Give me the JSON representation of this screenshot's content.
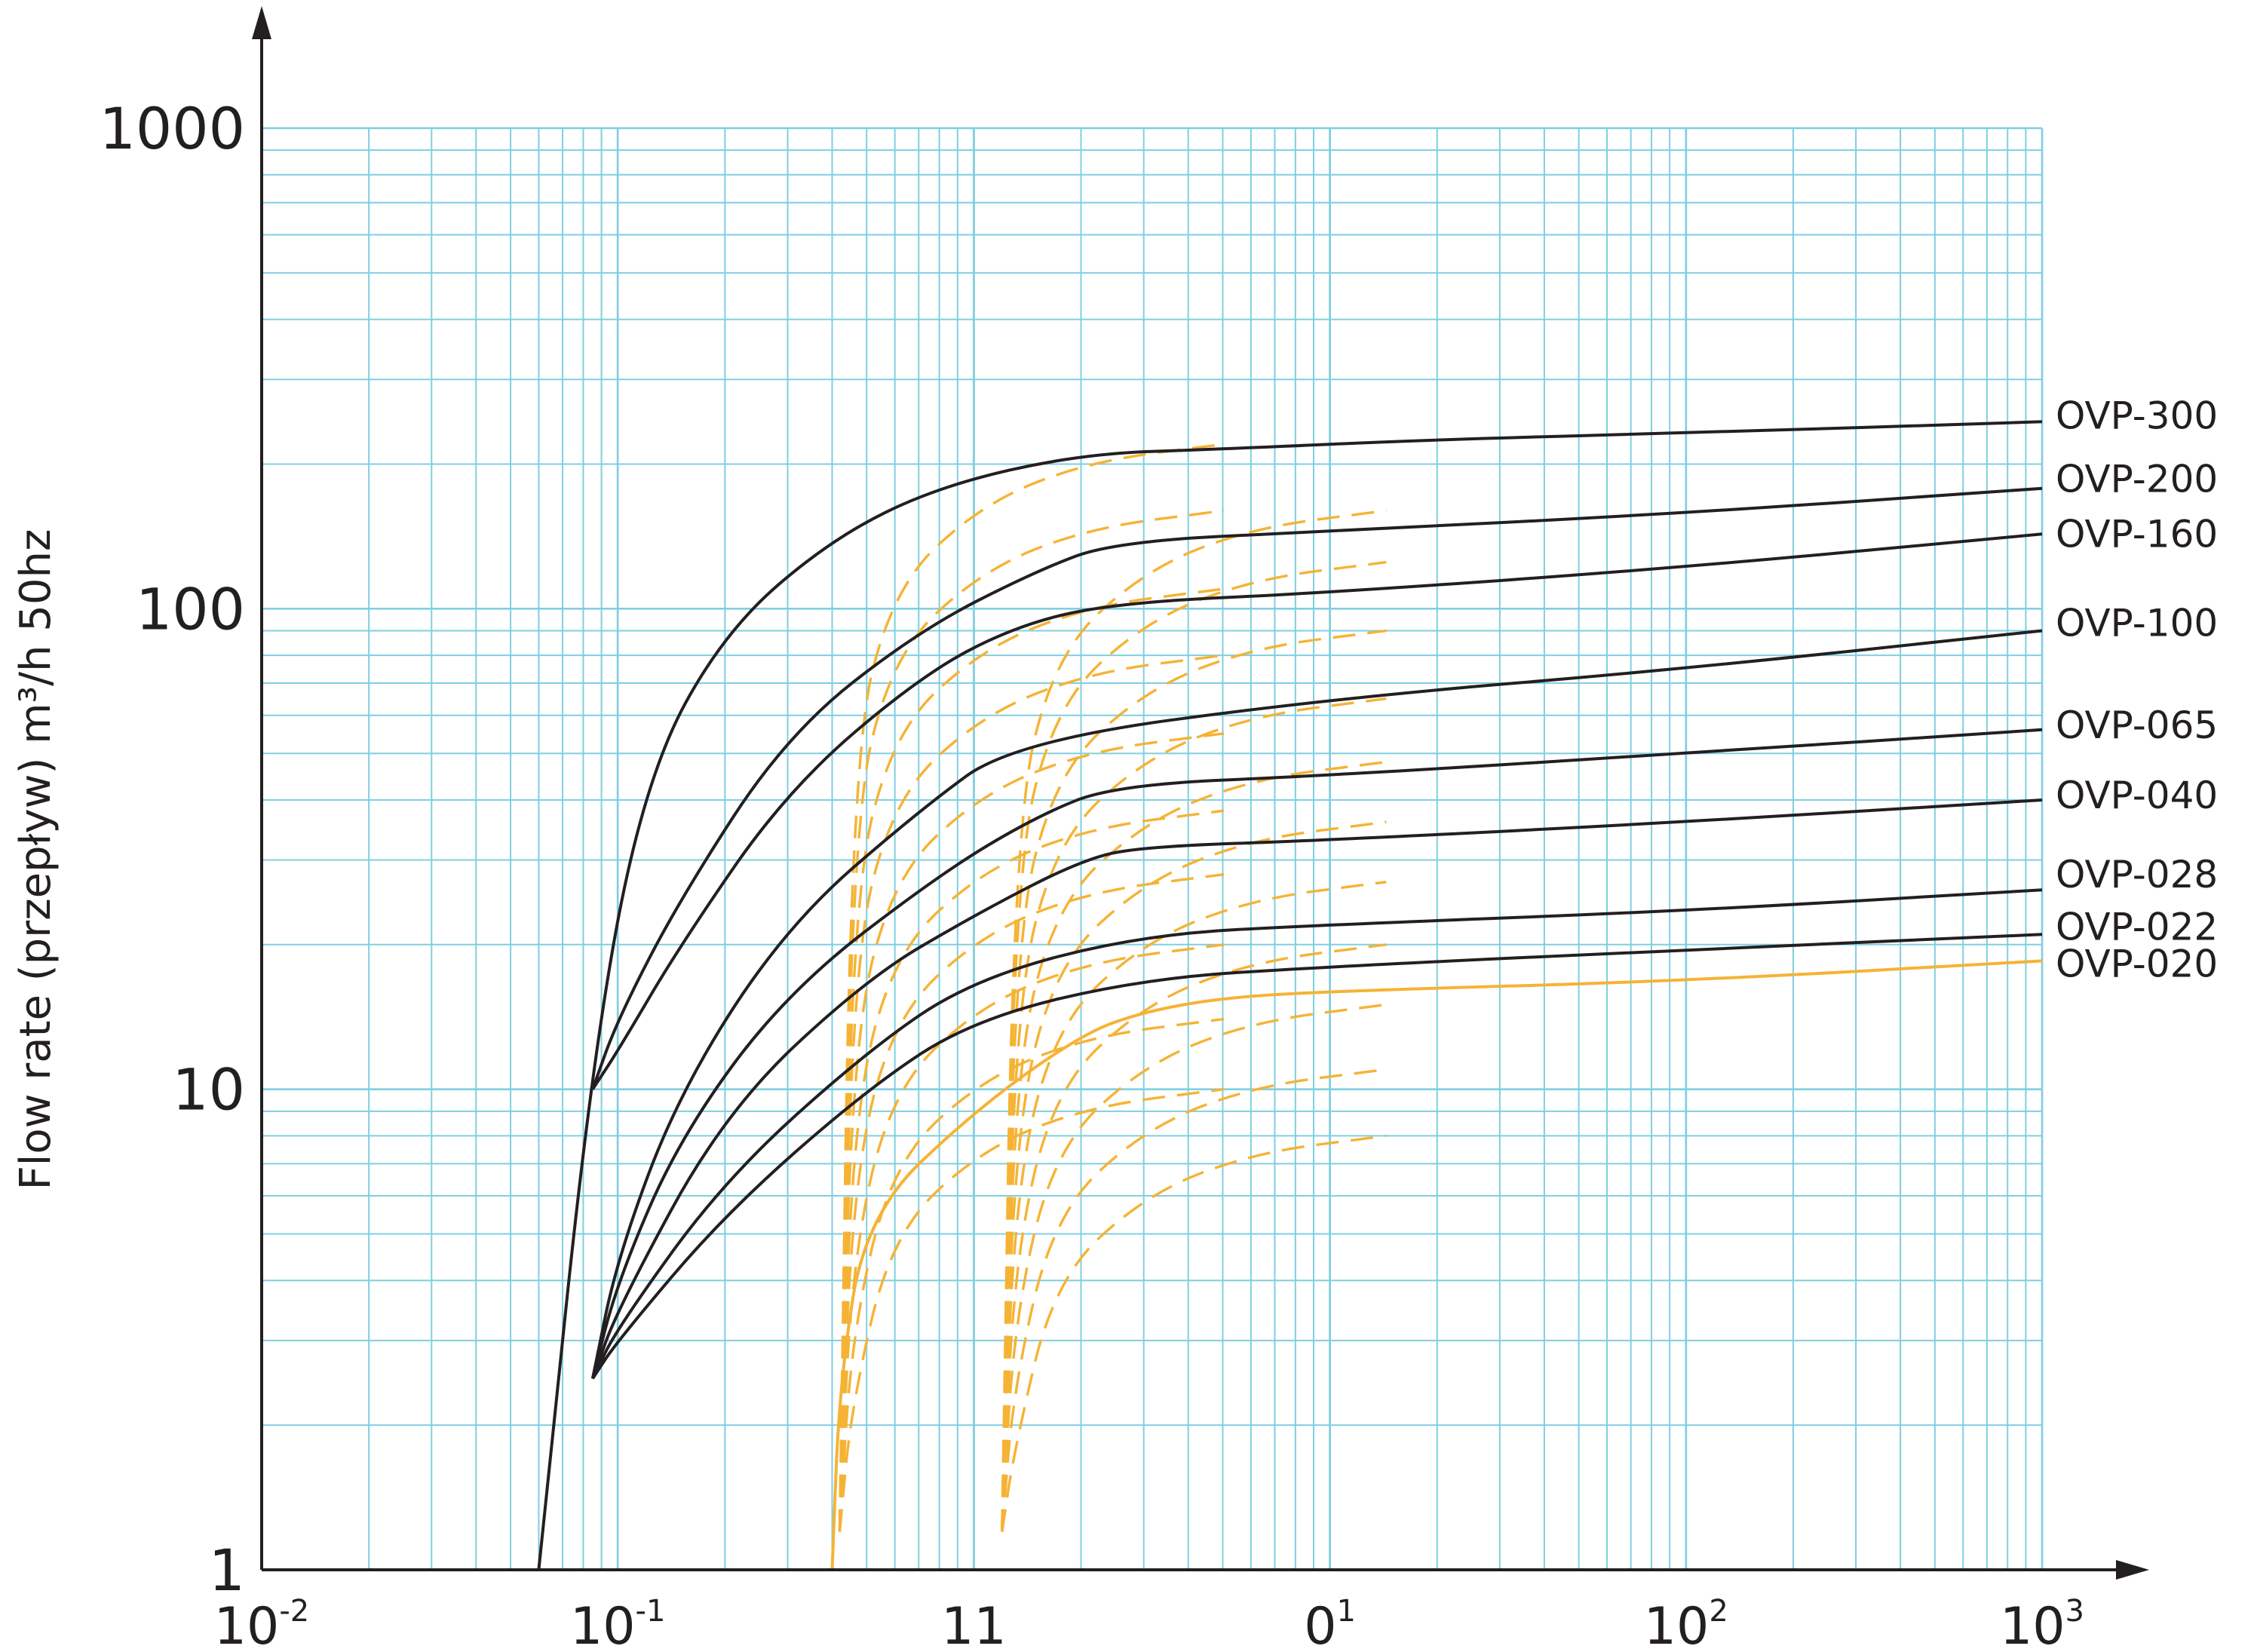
{
  "chart_data": {
    "type": "line",
    "title": "",
    "xlabel": "",
    "ylabel": "Flow rate (przepływ) m³/h 50hz",
    "x_scale": "log",
    "y_scale": "log",
    "xlim": [
      0.01,
      1000
    ],
    "ylim": [
      1,
      1000
    ],
    "grid": true,
    "colors": {
      "grid": "#7fcfe0",
      "black_curves": "#231f20",
      "orange_curves": "#f5b335",
      "axis": "#231f20"
    },
    "x_ticks": [
      {
        "base": "10",
        "exp": "-2"
      },
      {
        "base": "10",
        "exp": "-1"
      },
      {
        "base": "11",
        "exp": ""
      },
      {
        "base": "0",
        "exp": "1"
      },
      {
        "base": "10",
        "exp": "2"
      },
      {
        "base": "10",
        "exp": "3"
      }
    ],
    "y_ticks": [
      "1",
      "10",
      "100",
      "1000"
    ],
    "series": [
      {
        "name": "OVP-300",
        "color": "black",
        "x": [
          0.06,
          0.085,
          0.12,
          0.2,
          0.4,
          0.8,
          2,
          5,
          20,
          100,
          1000
        ],
        "y": [
          1,
          12,
          45,
          90,
          140,
          180,
          210,
          215,
          225,
          232,
          245
        ]
      },
      {
        "name": "OVP-200",
        "color": "black",
        "x": [
          0.085,
          0.1,
          0.15,
          0.3,
          0.7,
          1.5,
          2.5,
          10,
          100,
          1000
        ],
        "y": [
          10,
          14,
          25,
          55,
          90,
          120,
          138,
          145,
          158,
          178
        ]
      },
      {
        "name": "OVP-160",
        "color": "black",
        "x": [
          0.085,
          0.1,
          0.15,
          0.3,
          0.7,
          1.3,
          2.5,
          10,
          100,
          1000
        ],
        "y": [
          10,
          12,
          20,
          42,
          72,
          92,
          103,
          108,
          122,
          143
        ]
      },
      {
        "name": "OVP-100",
        "color": "black",
        "x": [
          0.085,
          0.1,
          0.15,
          0.3,
          0.7,
          1.3,
          10,
          100,
          1000
        ],
        "y": [
          2.5,
          4.5,
          10,
          22,
          38,
          53,
          65,
          75,
          90
        ]
      },
      {
        "name": "OVP-065",
        "color": "black",
        "x": [
          0.085,
          0.1,
          0.15,
          0.3,
          0.8,
          1.5,
          2.5,
          10,
          100,
          1000
        ],
        "y": [
          2.5,
          4,
          8,
          16,
          28,
          37,
          43,
          45,
          50,
          56
        ]
      },
      {
        "name": "OVP-040",
        "color": "black",
        "x": [
          0.085,
          0.1,
          0.2,
          0.5,
          1,
          2,
          3,
          10,
          100,
          1000
        ],
        "y": [
          2.5,
          3.5,
          9,
          17,
          23,
          30,
          32,
          33,
          36,
          40
        ]
      },
      {
        "name": "OVP-028",
        "color": "black",
        "x": [
          0.085,
          0.1,
          0.2,
          0.5,
          1,
          3,
          10,
          100,
          1000
        ],
        "y": [
          2.5,
          3.2,
          6.5,
          12,
          17,
          21,
          22,
          23.5,
          26
        ]
      },
      {
        "name": "OVP-022",
        "color": "black",
        "x": [
          0.085,
          0.1,
          0.2,
          0.5,
          1,
          3,
          10,
          100,
          1000
        ],
        "y": [
          2.5,
          3,
          5.5,
          10,
          14,
          17,
          18,
          19.5,
          21
        ]
      },
      {
        "name": "OVP-020",
        "color": "orange",
        "x": [
          0.4,
          0.42,
          0.5,
          1,
          2,
          3,
          5,
          10,
          100,
          1000
        ],
        "y": [
          1,
          2.5,
          5.5,
          9,
          13,
          14.5,
          15.5,
          16,
          16.8,
          18.5
        ]
      }
    ]
  }
}
